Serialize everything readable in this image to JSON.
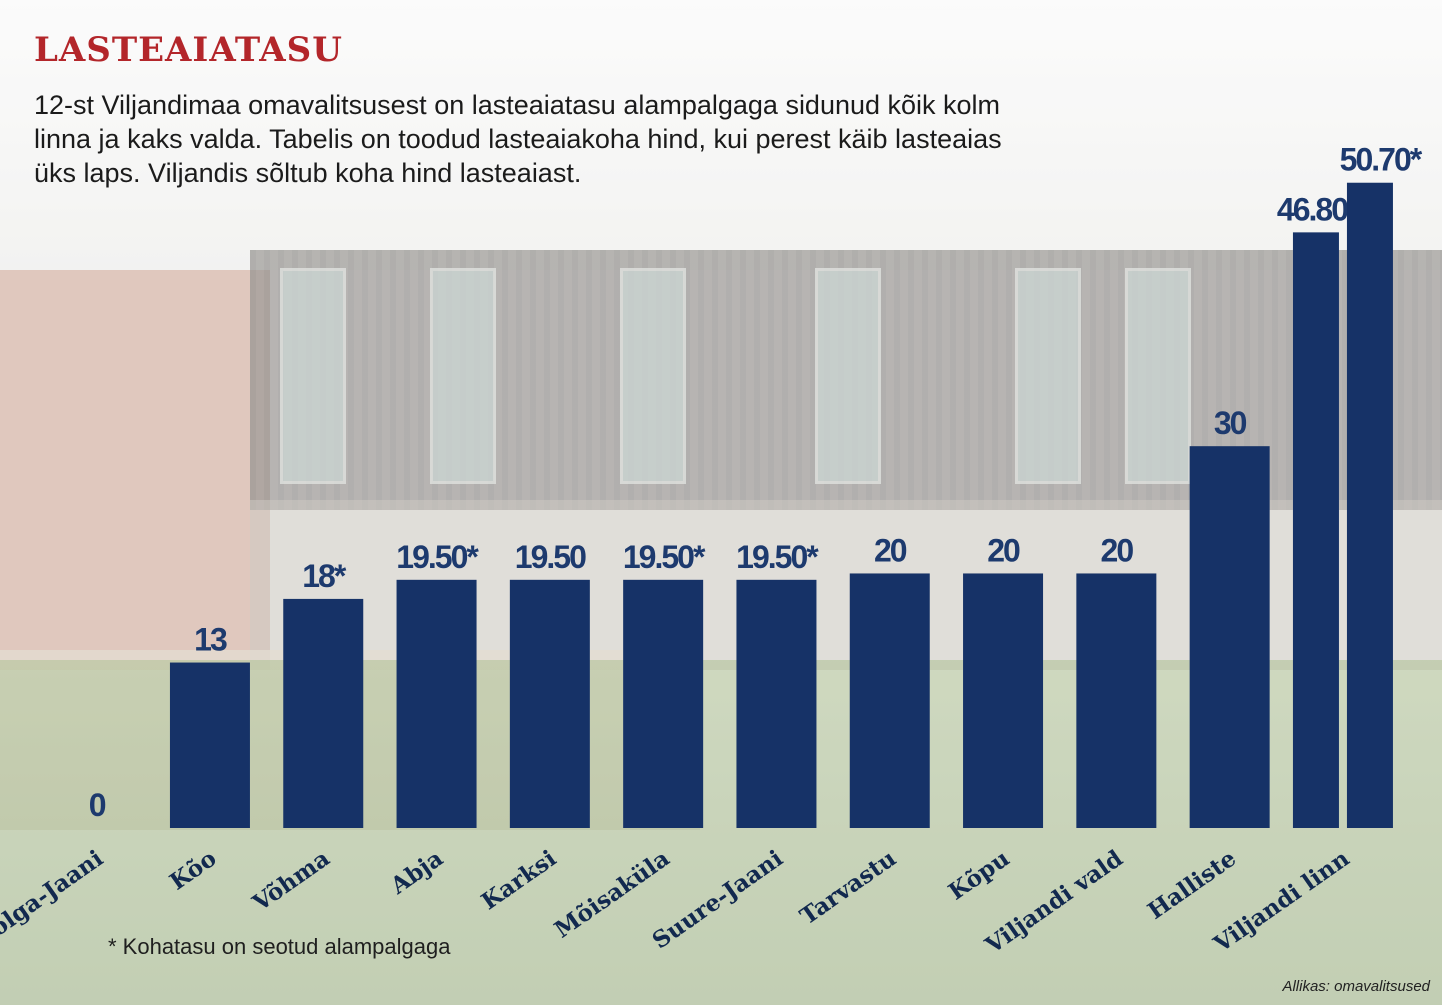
{
  "headline": "LASTEAIATASU",
  "lead": "12-st Viljandimaa omavalitsusest on lasteaiatasu alampalgaga sidunud kõik kolm linna ja kaks valda. Tabelis on toodud lasteaiakoha hind, kui perest käib lasteaias üks laps. Viljandis sõltub koha hind lasteaiast.",
  "footnote": "* Kohatasu on seotud alampalgaga",
  "source": "Allikas: omavalitsused",
  "colors": {
    "bar": "#163267",
    "headline": "#b3262a",
    "value_label": "#1d3a6e"
  },
  "chart_data": {
    "type": "bar",
    "title": "LASTEAIATASU",
    "categories": [
      "Kolga-Jaani",
      "Kõo",
      "Võhma",
      "Abja",
      "Karksi",
      "Mõisaküla",
      "Suure-Jaani",
      "Tarvastu",
      "Kõpu",
      "Viljandi vald",
      "Halliste",
      "Viljandi linn"
    ],
    "values": [
      0,
      13,
      18,
      19.5,
      19.5,
      19.5,
      19.5,
      20,
      20,
      20,
      30,
      50.7
    ],
    "value_labels": [
      "0",
      "13",
      "18*",
      "19.50*",
      "19.50",
      "19.50*",
      "19.50*",
      "20",
      "20",
      "20",
      "30",
      "50.70*"
    ],
    "extra_values": {
      "Viljandi linn": [
        46.8
      ]
    },
    "extra_value_labels": [
      "46.80"
    ],
    "xlabel": "",
    "ylabel": "",
    "ylim": [
      0,
      55
    ],
    "grid": false,
    "legend": "none"
  }
}
